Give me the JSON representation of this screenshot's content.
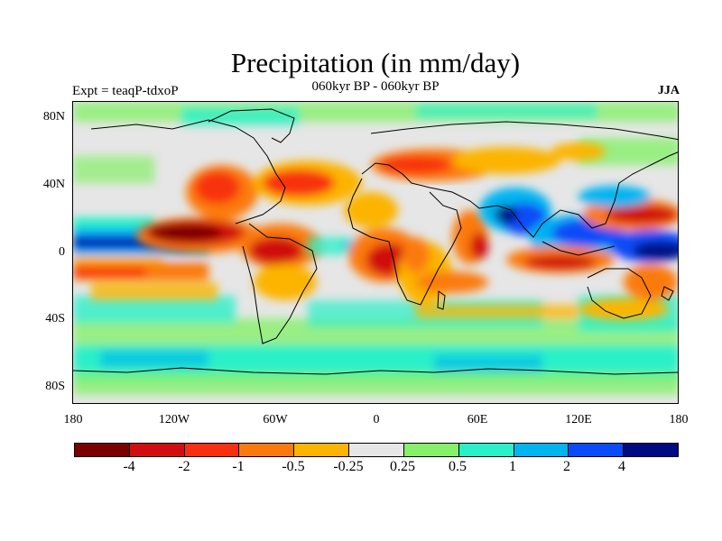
{
  "title": "Precipitation (in mm/day)",
  "subtitle_left": "Expt = teaqP-tdxoP",
  "subtitle_center": "060kyr BP - 060kyr BP",
  "subtitle_right": "JJA",
  "y_axis_labels": [
    "80N",
    "40N",
    "0",
    "40S",
    "80S"
  ],
  "x_axis_labels": [
    "180",
    "120W",
    "60W",
    "0",
    "60E",
    "120E",
    "180"
  ],
  "colorbar": {
    "labels": [
      "-4",
      "-2",
      "-1",
      "-0.5",
      "-0.25",
      "0.25",
      "0.5",
      "1",
      "2",
      "4"
    ],
    "colors": [
      "#7d0000",
      "#d01010",
      "#f83010",
      "#fb7a10",
      "#fcb400",
      "#e6e6e6",
      "#86f06a",
      "#2af0c8",
      "#00b4f0",
      "#0a4cf8",
      "#000a82"
    ]
  },
  "map_colors": {
    "background": "#e6e6e6",
    "coastline": "#000000"
  }
}
